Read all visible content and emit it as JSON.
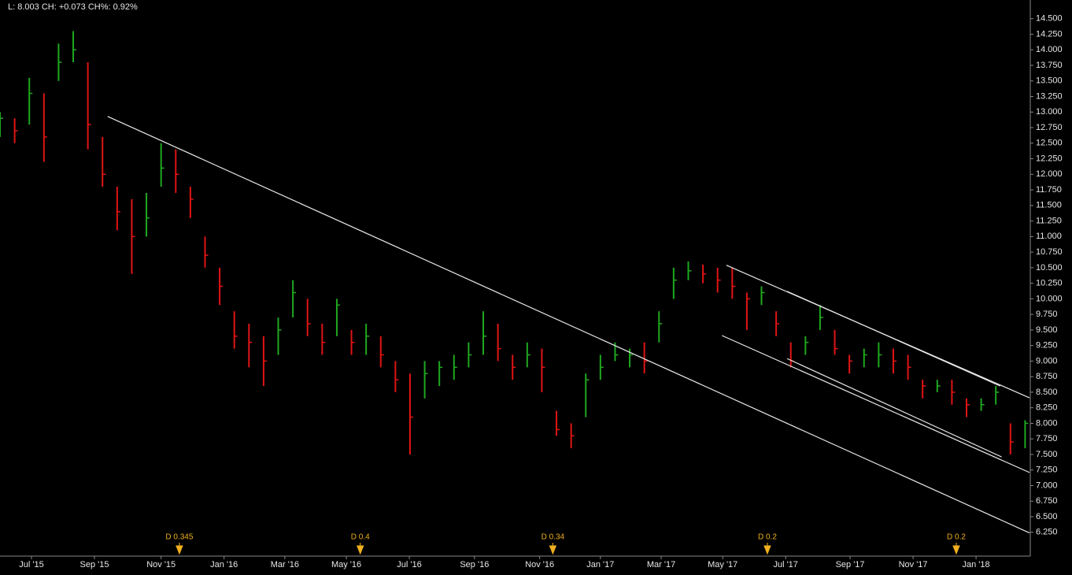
{
  "header": "L: 8.003 CH: +0.073 CH%: 0.92%",
  "chart_data": {
    "type": "hlc",
    "up_color": "#1fa81f",
    "down_color": "#e01414",
    "x": [
      0,
      2,
      4,
      6,
      8,
      10,
      12,
      14,
      16,
      18,
      20,
      22,
      24,
      26,
      28,
      30,
      32,
      34,
      36,
      38,
      40,
      42,
      44,
      46,
      48,
      50,
      52,
      54,
      56,
      58,
      60,
      62,
      64,
      66,
      68,
      70,
      72,
      74,
      76,
      78,
      80,
      82,
      84,
      86,
      88,
      90,
      92,
      94,
      96,
      98,
      100,
      102,
      104,
      106,
      108,
      110,
      112,
      114,
      116,
      118,
      120,
      122,
      124,
      126,
      128,
      130,
      132,
      134,
      136,
      138,
      140
    ],
    "high": [
      13.0,
      12.9,
      13.55,
      13.3,
      14.1,
      14.3,
      13.8,
      12.6,
      11.8,
      11.6,
      11.7,
      12.5,
      12.4,
      11.8,
      11.0,
      10.5,
      9.8,
      9.6,
      9.4,
      9.7,
      10.3,
      10.0,
      9.6,
      10.0,
      9.5,
      9.6,
      9.4,
      9.0,
      8.8,
      9.0,
      9.0,
      9.1,
      9.3,
      9.8,
      9.6,
      9.1,
      9.3,
      9.2,
      8.2,
      8.0,
      8.8,
      9.1,
      9.3,
      9.2,
      9.3,
      9.8,
      10.5,
      10.6,
      10.55,
      10.5,
      10.5,
      10.1,
      10.2,
      9.8,
      9.3,
      9.4,
      9.9,
      9.5,
      9.1,
      9.2,
      9.3,
      9.2,
      9.1,
      8.7,
      8.7,
      8.7,
      8.4,
      8.4,
      8.6,
      8.0,
      8.05
    ],
    "low": [
      12.6,
      12.5,
      12.8,
      12.2,
      13.5,
      13.8,
      12.4,
      11.8,
      11.1,
      10.4,
      11.0,
      11.8,
      11.7,
      11.3,
      10.5,
      9.9,
      9.2,
      8.9,
      8.6,
      9.1,
      9.7,
      9.4,
      9.1,
      9.4,
      9.1,
      9.1,
      8.9,
      8.5,
      7.5,
      8.4,
      8.6,
      8.7,
      8.9,
      9.1,
      9.0,
      8.7,
      8.9,
      8.5,
      7.8,
      7.6,
      8.1,
      8.7,
      9.0,
      8.9,
      8.8,
      9.3,
      10.0,
      10.3,
      10.25,
      10.1,
      10.0,
      9.5,
      9.9,
      9.4,
      8.9,
      9.1,
      9.5,
      9.1,
      8.8,
      8.9,
      8.9,
      8.8,
      8.7,
      8.4,
      8.5,
      8.3,
      8.1,
      8.2,
      8.3,
      7.5,
      7.6
    ],
    "close": [
      12.9,
      12.7,
      13.3,
      12.6,
      13.8,
      14.0,
      12.8,
      12.0,
      11.4,
      11.0,
      11.3,
      12.1,
      12.0,
      11.6,
      10.7,
      10.2,
      9.4,
      9.3,
      9.0,
      9.5,
      10.1,
      9.6,
      9.3,
      9.9,
      9.3,
      9.4,
      9.1,
      8.7,
      8.1,
      8.8,
      8.9,
      8.9,
      9.1,
      9.4,
      9.2,
      8.9,
      9.1,
      8.9,
      7.9,
      7.8,
      8.7,
      8.9,
      9.1,
      9.1,
      9.0,
      9.6,
      10.3,
      10.45,
      10.4,
      10.3,
      10.2,
      10.0,
      10.1,
      9.6,
      9.0,
      9.3,
      9.7,
      9.2,
      9.0,
      9.1,
      9.1,
      9.0,
      8.9,
      8.6,
      8.6,
      8.5,
      8.3,
      8.3,
      8.5,
      7.7,
      8.0
    ],
    "xlim": [
      0,
      140.6
    ],
    "ylim": [
      5.88,
      14.8
    ],
    "xticks": [
      {
        "value": 4.3,
        "label": "Jul '15"
      },
      {
        "value": 12.9,
        "label": "Sep '15"
      },
      {
        "value": 22.0,
        "label": "Nov '15"
      },
      {
        "value": 30.6,
        "label": "Jan '16"
      },
      {
        "value": 38.9,
        "label": "Mar '16"
      },
      {
        "value": 47.3,
        "label": "May '16"
      },
      {
        "value": 55.9,
        "label": "Jul '16"
      },
      {
        "value": 64.8,
        "label": "Sep '16"
      },
      {
        "value": 73.7,
        "label": "Nov '16"
      },
      {
        "value": 82.0,
        "label": "Jan '17"
      },
      {
        "value": 90.3,
        "label": "Mar '17"
      },
      {
        "value": 98.7,
        "label": "May '17"
      },
      {
        "value": 107.3,
        "label": "Jul '17"
      },
      {
        "value": 116.1,
        "label": "Sep '17"
      },
      {
        "value": 124.7,
        "label": "Nov '17"
      },
      {
        "value": 133.3,
        "label": "Jan '18"
      }
    ],
    "yticks": [
      {
        "value": 6.25,
        "label": "6.250"
      },
      {
        "value": 6.5,
        "label": "6.500"
      },
      {
        "value": 6.75,
        "label": "6.750"
      },
      {
        "value": 7,
        "label": "7.000"
      },
      {
        "value": 7.25,
        "label": "7.250"
      },
      {
        "value": 7.5,
        "label": "7.500"
      },
      {
        "value": 7.75,
        "label": "7.750"
      },
      {
        "value": 8,
        "label": "8.000"
      },
      {
        "value": 8.25,
        "label": "8.250"
      },
      {
        "value": 8.5,
        "label": "8.500"
      },
      {
        "value": 8.75,
        "label": "8.750"
      },
      {
        "value": 9,
        "label": "9.000"
      },
      {
        "value": 9.25,
        "label": "9.250"
      },
      {
        "value": 9.5,
        "label": "9.500"
      },
      {
        "value": 9.75,
        "label": "9.750"
      },
      {
        "value": 10,
        "label": "10.000"
      },
      {
        "value": 10.25,
        "label": "10.250"
      },
      {
        "value": 10.5,
        "label": "10.500"
      },
      {
        "value": 10.75,
        "label": "10.750"
      },
      {
        "value": 11,
        "label": "11.000"
      },
      {
        "value": 11.25,
        "label": "11.250"
      },
      {
        "value": 11.5,
        "label": "11.500"
      },
      {
        "value": 11.75,
        "label": "11.750"
      },
      {
        "value": 12,
        "label": "12.000"
      },
      {
        "value": 12.25,
        "label": "12.250"
      },
      {
        "value": 12.5,
        "label": "12.500"
      },
      {
        "value": 12.75,
        "label": "12.750"
      },
      {
        "value": 13,
        "label": "13.000"
      },
      {
        "value": 13.25,
        "label": "13.250"
      },
      {
        "value": 13.5,
        "label": "13.500"
      },
      {
        "value": 13.75,
        "label": "13.750"
      },
      {
        "value": 14,
        "label": "14.000"
      },
      {
        "value": 14.25,
        "label": "14.250"
      },
      {
        "value": 14.5,
        "label": "14.500"
      }
    ],
    "events": [
      {
        "x": 24.5,
        "label": "D 0.345"
      },
      {
        "x": 49.2,
        "label": "D 0.4"
      },
      {
        "x": 75.5,
        "label": "D 0.34"
      },
      {
        "x": 104.8,
        "label": "D 0.2"
      },
      {
        "x": 130.6,
        "label": "D 0.2"
      }
    ],
    "trendlines": [
      {
        "x": [
          14.7,
          140.6
        ],
        "y": [
          12.93,
          6.24
        ]
      },
      {
        "x": [
          99.2,
          140.6
        ],
        "y": [
          10.54,
          8.41
        ]
      },
      {
        "x": [
          98.6,
          140.6
        ],
        "y": [
          9.41,
          7.21
        ]
      },
      {
        "x": [
          107.5,
          136.6
        ],
        "y": [
          10.12,
          8.6
        ]
      },
      {
        "x": [
          107.5,
          136.8
        ],
        "y": [
          9.04,
          7.46
        ]
      }
    ]
  }
}
